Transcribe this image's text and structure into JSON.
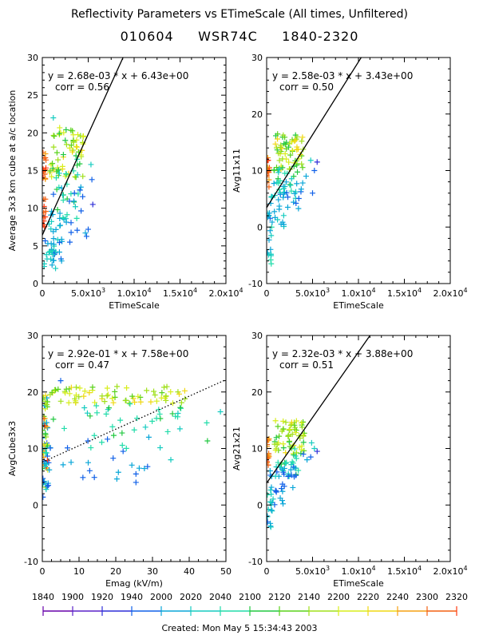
{
  "header": {
    "title": "Reflectivity Parameters vs ETimeScale (All times, Unfiltered)",
    "subtitle": "010604     WSR74C     1840-2320"
  },
  "footer": {
    "created": "Created: Mon May  5 15:34:43 2003"
  },
  "colorbar": {
    "labels": [
      "1840",
      "1900",
      "1920",
      "1940",
      "2000",
      "2020",
      "2040",
      "2100",
      "2120",
      "2140",
      "2200",
      "2220",
      "2240",
      "2300",
      "2320"
    ],
    "colors": [
      "#6600aa",
      "#5a22c8",
      "#2f2fd8",
      "#1060e8",
      "#0aa6d8",
      "#16ccc0",
      "#22dcaa",
      "#22c840",
      "#5ad21c",
      "#a0e01c",
      "#d8ee1c",
      "#f0d812",
      "#f6a012",
      "#f46012",
      "#ff3a10"
    ]
  },
  "chart_data": [
    {
      "id": "p1",
      "type": "scatter",
      "ylabel": "Average 3x3 km cube at a/c location",
      "xlabel": "ETimeScale",
      "xlim": [
        0,
        20000
      ],
      "ylim": [
        0,
        30
      ],
      "xticks": [
        0,
        5000,
        10000,
        15000,
        20000
      ],
      "xtick_labels": [
        "0",
        "5.0x10^3",
        "1.0x10^4",
        "1.5x10^4",
        "2.0x10^4"
      ],
      "yticks": [
        0,
        5,
        10,
        15,
        20,
        25,
        30
      ],
      "fit_text": "y = 2.68e-03 * x  + 6.43e+00",
      "corr_text": "corr = 0.56",
      "fit": {
        "slope": 0.00268,
        "intercept": 6.43,
        "style": "solid"
      },
      "clusters": [
        {
          "x0": 0,
          "x1": 400,
          "y0": 13,
          "y1": 18,
          "n": 14,
          "c0": 12,
          "c1": 14
        },
        {
          "x0": 0,
          "x1": 400,
          "y0": 7,
          "y1": 13,
          "n": 10,
          "c0": 13,
          "c1": 14
        },
        {
          "x0": 200,
          "x1": 1500,
          "y0": 1,
          "y1": 6,
          "n": 20,
          "c0": 3,
          "c1": 6
        },
        {
          "x0": 500,
          "x1": 2500,
          "y0": 3,
          "y1": 12,
          "n": 26,
          "c0": 3,
          "c1": 5
        },
        {
          "x0": 800,
          "x1": 4500,
          "y0": 14,
          "y1": 21,
          "n": 60,
          "c0": 7,
          "c1": 11
        },
        {
          "x0": 1500,
          "x1": 4000,
          "y0": 8,
          "y1": 16,
          "n": 22,
          "c0": 5,
          "c1": 7
        },
        {
          "x0": 2000,
          "x1": 5000,
          "y0": 5,
          "y1": 13,
          "n": 12,
          "c0": 3,
          "c1": 4
        }
      ],
      "points": [
        {
          "x": 5500,
          "y": 10.5,
          "c": 2
        },
        {
          "x": 5000,
          "y": 7.2,
          "c": 3
        },
        {
          "x": 5400,
          "y": 13.8,
          "c": 3
        },
        {
          "x": 5300,
          "y": 15.8,
          "c": 5
        },
        {
          "x": 4200,
          "y": 12.8,
          "c": 4
        },
        {
          "x": 4100,
          "y": 12.4,
          "c": 3
        },
        {
          "x": 3000,
          "y": 5.5,
          "c": 3
        },
        {
          "x": 2100,
          "y": 3.0,
          "c": 4
        },
        {
          "x": 3500,
          "y": 12.0,
          "c": 3
        },
        {
          "x": 1200,
          "y": 22.0,
          "c": 5
        },
        {
          "x": 2500,
          "y": 19.0,
          "c": 7
        },
        {
          "x": 3800,
          "y": 16.5,
          "c": 6
        }
      ]
    },
    {
      "id": "p2",
      "type": "scatter",
      "ylabel": "Avg11x11",
      "xlabel": "ETimeScale",
      "xlim": [
        0,
        20000
      ],
      "ylim": [
        -10,
        30
      ],
      "xticks": [
        0,
        5000,
        10000,
        15000,
        20000
      ],
      "xtick_labels": [
        "0",
        "5.0x10^3",
        "1.0x10^4",
        "1.5x10^4",
        "2.0x10^4"
      ],
      "yticks": [
        -10,
        0,
        10,
        20,
        30
      ],
      "fit_text": "y = 2.58e-03 * x  + 3.43e+00",
      "corr_text": "corr = 0.50",
      "fit": {
        "slope": 0.00258,
        "intercept": 3.43,
        "style": "solid"
      },
      "clusters": [
        {
          "x0": 0,
          "x1": 300,
          "y0": 7,
          "y1": 13,
          "n": 14,
          "c0": 12,
          "c1": 14
        },
        {
          "x0": 0,
          "x1": 600,
          "y0": -6,
          "y1": 3,
          "n": 16,
          "c0": 3,
          "c1": 6
        },
        {
          "x0": 300,
          "x1": 2000,
          "y0": 0,
          "y1": 8,
          "n": 24,
          "c0": 3,
          "c1": 5
        },
        {
          "x0": 800,
          "x1": 4200,
          "y0": 10,
          "y1": 17,
          "n": 60,
          "c0": 7,
          "c1": 11
        },
        {
          "x0": 1200,
          "x1": 3500,
          "y0": 5,
          "y1": 11,
          "n": 20,
          "c0": 5,
          "c1": 7
        },
        {
          "x0": 1500,
          "x1": 4000,
          "y0": 3,
          "y1": 8,
          "n": 12,
          "c0": 3,
          "c1": 4
        }
      ],
      "points": [
        {
          "x": 5500,
          "y": 11.5,
          "c": 2
        },
        {
          "x": 5000,
          "y": 6.0,
          "c": 3
        },
        {
          "x": 5200,
          "y": 10.0,
          "c": 3
        },
        {
          "x": 4800,
          "y": 11.8,
          "c": 5
        },
        {
          "x": 4300,
          "y": 9.0,
          "c": 4
        },
        {
          "x": 3200,
          "y": 4.2,
          "c": 3
        },
        {
          "x": 2300,
          "y": 3.5,
          "c": 4
        },
        {
          "x": 500,
          "y": -6.5,
          "c": 6
        }
      ]
    },
    {
      "id": "p3",
      "type": "scatter",
      "ylabel": "AvgCube3x3",
      "xlabel": "Emag (kV/m)",
      "xlim": [
        0,
        50
      ],
      "ylim": [
        -10,
        30
      ],
      "xticks": [
        0,
        10,
        20,
        30,
        40,
        50
      ],
      "xtick_labels": [
        "0",
        "10",
        "20",
        "30",
        "40",
        "50"
      ],
      "yticks": [
        -10,
        0,
        10,
        20,
        30
      ],
      "fit_text": "y = 2.92e-01 * x  + 7.58e+00",
      "corr_text": "corr = 0.47",
      "fit": {
        "slope": 0.292,
        "intercept": 7.58,
        "style": "dotted"
      },
      "clusters": [
        {
          "x0": 0,
          "x1": 1.5,
          "y0": 3,
          "y1": 20,
          "n": 60,
          "c0": 3,
          "c1": 14
        },
        {
          "x0": 0,
          "x1": 2,
          "y0": 1,
          "y1": 8,
          "n": 14,
          "c0": 3,
          "c1": 5
        },
        {
          "x0": 2,
          "x1": 40,
          "y0": 18,
          "y1": 21,
          "n": 70,
          "c0": 8,
          "c1": 11
        },
        {
          "x0": 2,
          "x1": 45,
          "y0": 10,
          "y1": 18,
          "n": 40,
          "c0": 5,
          "c1": 7
        },
        {
          "x0": 2,
          "x1": 30,
          "y0": 4,
          "y1": 12,
          "n": 16,
          "c0": 3,
          "c1": 4
        }
      ],
      "points": [
        {
          "x": 5.0,
          "y": 22.0,
          "c": 3
        },
        {
          "x": 25.5,
          "y": 5.5,
          "c": 3
        },
        {
          "x": 25.5,
          "y": 4.0,
          "c": 3
        },
        {
          "x": 22.0,
          "y": 9.5,
          "c": 3
        },
        {
          "x": 12.5,
          "y": 7.5,
          "c": 4
        },
        {
          "x": 35.0,
          "y": 8.0,
          "c": 5
        },
        {
          "x": 48.5,
          "y": 16.5,
          "c": 5
        },
        {
          "x": 29.0,
          "y": 12.0,
          "c": 4
        }
      ]
    },
    {
      "id": "p4",
      "type": "scatter",
      "ylabel": "Avg21x21",
      "xlabel": "ETimeScale",
      "xlim": [
        0,
        20000
      ],
      "ylim": [
        -10,
        30
      ],
      "xticks": [
        0,
        5000,
        10000,
        15000,
        20000
      ],
      "xtick_labels": [
        "0",
        "5.0x10^3",
        "1.0x10^4",
        "1.5x10^4",
        "2.0x10^4"
      ],
      "yticks": [
        -10,
        0,
        10,
        20,
        30
      ],
      "fit_text": "y = 2.32e-03 * x  + 3.88e+00",
      "corr_text": "corr = 0.51",
      "fit": {
        "slope": 0.00232,
        "intercept": 3.88,
        "style": "solid"
      },
      "clusters": [
        {
          "x0": 0,
          "x1": 300,
          "y0": 7,
          "y1": 12,
          "n": 14,
          "c0": 12,
          "c1": 14
        },
        {
          "x0": 0,
          "x1": 600,
          "y0": -4,
          "y1": 3,
          "n": 14,
          "c0": 3,
          "c1": 6
        },
        {
          "x0": 300,
          "x1": 2000,
          "y0": 0,
          "y1": 7,
          "n": 22,
          "c0": 3,
          "c1": 5
        },
        {
          "x0": 800,
          "x1": 4200,
          "y0": 9,
          "y1": 15,
          "n": 60,
          "c0": 7,
          "c1": 11
        },
        {
          "x0": 1200,
          "x1": 3500,
          "y0": 5,
          "y1": 10,
          "n": 20,
          "c0": 5,
          "c1": 7
        },
        {
          "x0": 1500,
          "x1": 4000,
          "y0": 2,
          "y1": 7,
          "n": 12,
          "c0": 3,
          "c1": 4
        }
      ],
      "points": [
        {
          "x": 5500,
          "y": 9.5,
          "c": 2
        },
        {
          "x": 4800,
          "y": 8.5,
          "c": 3
        },
        {
          "x": 5200,
          "y": 10.0,
          "c": 5
        },
        {
          "x": 4400,
          "y": 8.0,
          "c": 4
        },
        {
          "x": 4000,
          "y": 9.0,
          "c": 3
        },
        {
          "x": 3000,
          "y": 5.0,
          "c": 3
        },
        {
          "x": 4900,
          "y": 11.0,
          "c": 5
        }
      ]
    }
  ]
}
